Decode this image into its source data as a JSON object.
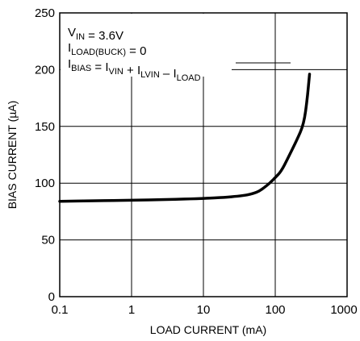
{
  "chart_data": {
    "type": "line",
    "title": "",
    "xlabel": "LOAD CURRENT (mA)",
    "ylabel": "BIAS CURRENT (µA)",
    "xscale": "log",
    "xlim": [
      0.1,
      1000
    ],
    "ylim": [
      0,
      250
    ],
    "grid": true,
    "x_ticks": [
      "0.1",
      "1",
      "10",
      "100",
      "1000"
    ],
    "y_ticks": [
      "0",
      "50",
      "100",
      "150",
      "200",
      "250"
    ],
    "annotations": [
      {
        "main": "V",
        "sub": "IN",
        "rest": " = 3.6V"
      },
      {
        "main": "I",
        "sub": "LOAD(BUCK)",
        "rest": " = 0"
      },
      {
        "parts": [
          {
            "t": "I",
            "s": "BIAS"
          },
          {
            "t": " = I",
            "s": "VIN"
          },
          {
            "t": " + I",
            "s": "LVIN"
          },
          {
            "t": " – I",
            "s": "LOAD"
          }
        ]
      }
    ],
    "series": [
      {
        "x": [
          0.1,
          0.3,
          1,
          3,
          10,
          20,
          30,
          40,
          50,
          60,
          70,
          80,
          90,
          100,
          120,
          150,
          200,
          250,
          280,
          300
        ],
        "y": [
          84,
          84.5,
          85,
          85.5,
          86.5,
          87.5,
          88.5,
          89.5,
          91,
          93,
          96,
          99,
          102,
          105,
          110,
          122,
          138,
          152,
          175,
          196
        ]
      }
    ]
  }
}
